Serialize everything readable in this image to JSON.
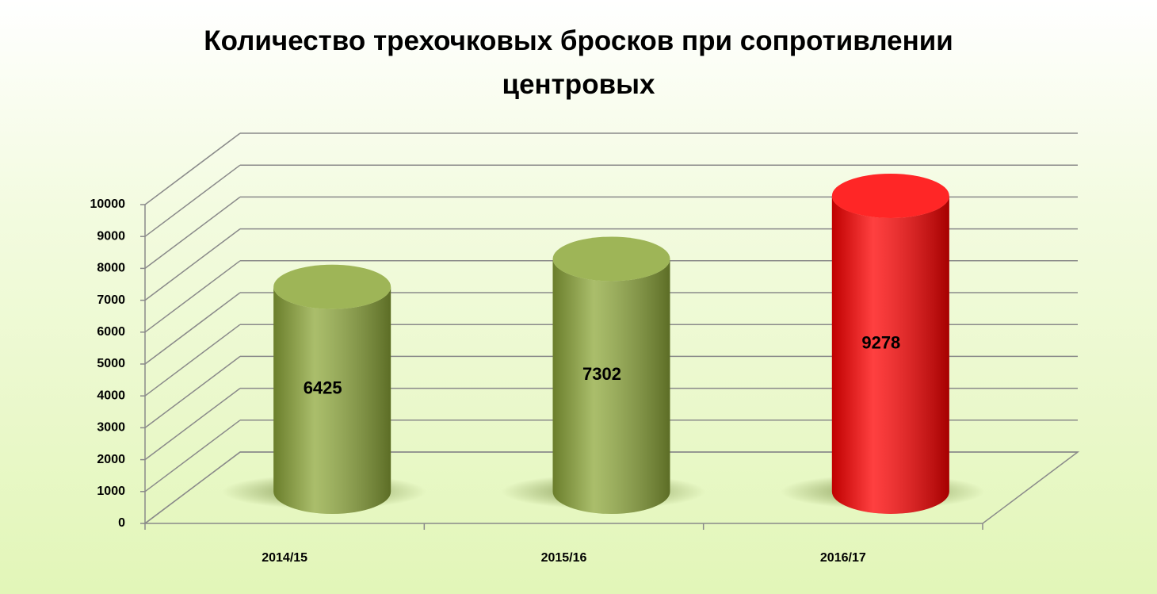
{
  "chart_data": {
    "type": "bar3d",
    "title": "Количество трехочковых бросков при сопротивлении центровых",
    "categories": [
      "2014/15",
      "2015/16",
      "2016/17"
    ],
    "values": [
      6425,
      7302,
      9278
    ],
    "colors": [
      "#8ea83a",
      "#8ea83a",
      "#ff0000"
    ],
    "ylim": [
      0,
      10000
    ],
    "yticks": [
      0,
      1000,
      2000,
      3000,
      4000,
      5000,
      6000,
      7000,
      8000,
      9000,
      10000
    ],
    "grid": true
  }
}
